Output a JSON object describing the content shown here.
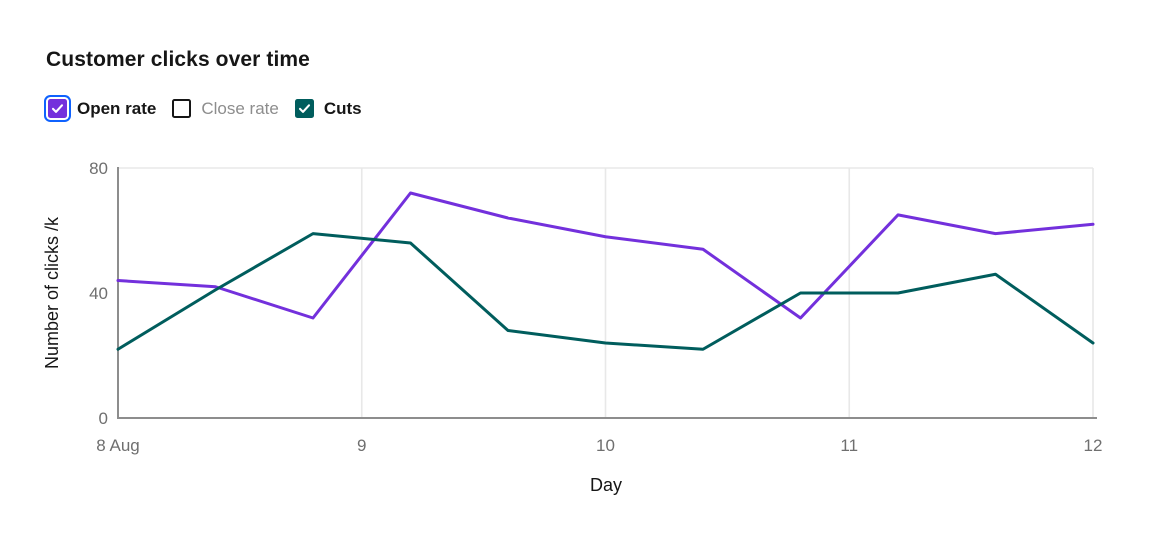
{
  "header": {
    "title": "Customer clicks over time"
  },
  "legend": {
    "items": [
      {
        "label": "Open rate",
        "checked": true,
        "focused": true,
        "color": "#7330dc"
      },
      {
        "label": "Close rate",
        "checked": false,
        "focused": false,
        "color": null
      },
      {
        "label": "Cuts",
        "checked": true,
        "focused": false,
        "color": "#005d5d"
      }
    ]
  },
  "chart_data": {
    "type": "line",
    "title": "Customer clicks over time",
    "xlabel": "Day",
    "ylabel": "Number of clicks /k",
    "xlim": [
      8,
      12
    ],
    "ylim": [
      0,
      80
    ],
    "x": [
      8.0,
      8.4,
      8.8,
      9.2,
      9.6,
      10.0,
      10.4,
      10.8,
      11.2,
      11.6,
      12.0
    ],
    "series": [
      {
        "name": "Open rate",
        "color": "#7330dc",
        "checked": true,
        "values": [
          44,
          42,
          32,
          72,
          64,
          58,
          54,
          32,
          65,
          59,
          62
        ]
      },
      {
        "name": "Close rate",
        "color": null,
        "checked": false,
        "values": []
      },
      {
        "name": "Cuts",
        "color": "#005d5d",
        "checked": true,
        "values": [
          22,
          41,
          59,
          56,
          28,
          24,
          22,
          40,
          40,
          46,
          24
        ]
      }
    ],
    "x_ticks": [
      {
        "value": 8,
        "label": "8 Aug"
      },
      {
        "value": 9,
        "label": "9"
      },
      {
        "value": 10,
        "label": "10"
      },
      {
        "value": 11,
        "label": "11"
      },
      {
        "value": 12,
        "label": "12"
      }
    ],
    "y_ticks": [
      0,
      40,
      80
    ],
    "grid": {
      "vertical_at": [
        9,
        10,
        11,
        12
      ],
      "horizontal_at": [
        80
      ]
    },
    "axis_color": "#8d8d8d",
    "grid_color": "#e8e8e8",
    "tick_label_color": "#6f6f6f"
  }
}
